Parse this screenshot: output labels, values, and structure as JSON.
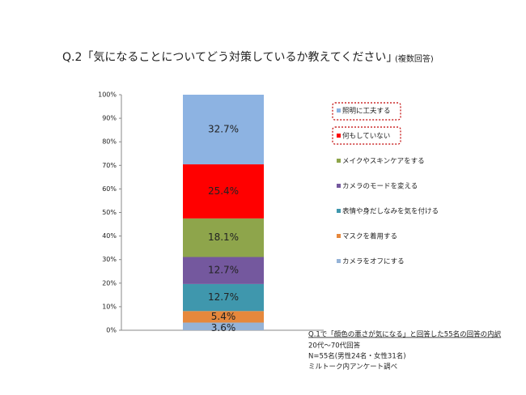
{
  "chart_data": {
    "type": "percent_stacked_bar",
    "title": "Q.2「気になることについてどう対策しているか教えてください」",
    "subtitle": "(複数回答)",
    "categories": [
      null
    ],
    "series": [
      {
        "name": "カメラをオフにする",
        "color": "#95b3d7",
        "values": [
          3.6
        ],
        "value_labels": [
          "3.6%"
        ]
      },
      {
        "name": "マスクを着用する",
        "color": "#e6883c",
        "values": [
          5.4
        ],
        "value_labels": [
          "5.4%"
        ]
      },
      {
        "name": "表情や身だしなみを気を付ける",
        "color": "#3f97ad",
        "values": [
          12.7
        ],
        "value_labels": [
          "12.7%"
        ]
      },
      {
        "name": "カメラのモードを変える",
        "color": "#74589e",
        "values": [
          12.7
        ],
        "value_labels": [
          "12.7%"
        ]
      },
      {
        "name": "メイクやスキンケアをする",
        "color": "#8ea54b",
        "values": [
          18.1
        ],
        "value_labels": [
          "18.1%"
        ]
      },
      {
        "name": "何もしていない",
        "color": "#ff0000",
        "values": [
          25.4
        ],
        "value_labels": [
          "25.4%"
        ]
      },
      {
        "name": "照明に工夫する",
        "color": "#8db3e2",
        "values": [
          32.7
        ],
        "value_labels": [
          "32.7%"
        ]
      }
    ],
    "ylim": [
      0,
      100
    ],
    "yticks": [
      {
        "value": 0,
        "label": "0%"
      },
      {
        "value": 10,
        "label": "10%"
      },
      {
        "value": 20,
        "label": "20%"
      },
      {
        "value": 30,
        "label": "30%"
      },
      {
        "value": 40,
        "label": "40%"
      },
      {
        "value": 50,
        "label": "50%"
      },
      {
        "value": 60,
        "label": "60%"
      },
      {
        "value": 70,
        "label": "70%"
      },
      {
        "value": 80,
        "label": "80%"
      },
      {
        "value": 90,
        "label": "90%"
      },
      {
        "value": 100,
        "label": "100%"
      }
    ],
    "legend": "right",
    "notes": [
      "Q.1で「顔色の悪さが気になる」と回答した55名の回答の内訳",
      "20代〜70代回答",
      "N=55名(男性24名・女性31名)",
      "ミルトーク内アンケート調べ"
    ]
  }
}
